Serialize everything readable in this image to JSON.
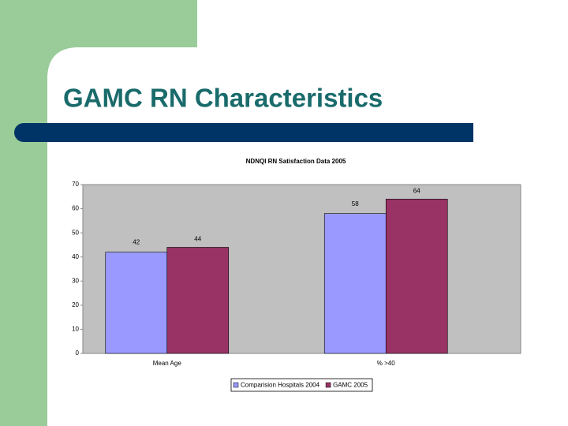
{
  "slide_title": "GAMC RN Characteristics",
  "chart_data": {
    "type": "bar",
    "title": "NDNQI RN Satisfaction Data 2005",
    "categories": [
      "Mean Age",
      "% >40"
    ],
    "series": [
      {
        "name": "Comparision Hospitals 2004",
        "color": "#9999ff",
        "values": [
          42,
          58
        ]
      },
      {
        "name": "GAMC 2005",
        "color": "#993366",
        "values": [
          44,
          64
        ]
      }
    ],
    "ylim": [
      0,
      70
    ],
    "yticks": [
      0,
      10,
      20,
      30,
      40,
      50,
      60,
      70
    ],
    "grid": false,
    "legend": "bottom",
    "plot_background": "#c0c0c0"
  }
}
